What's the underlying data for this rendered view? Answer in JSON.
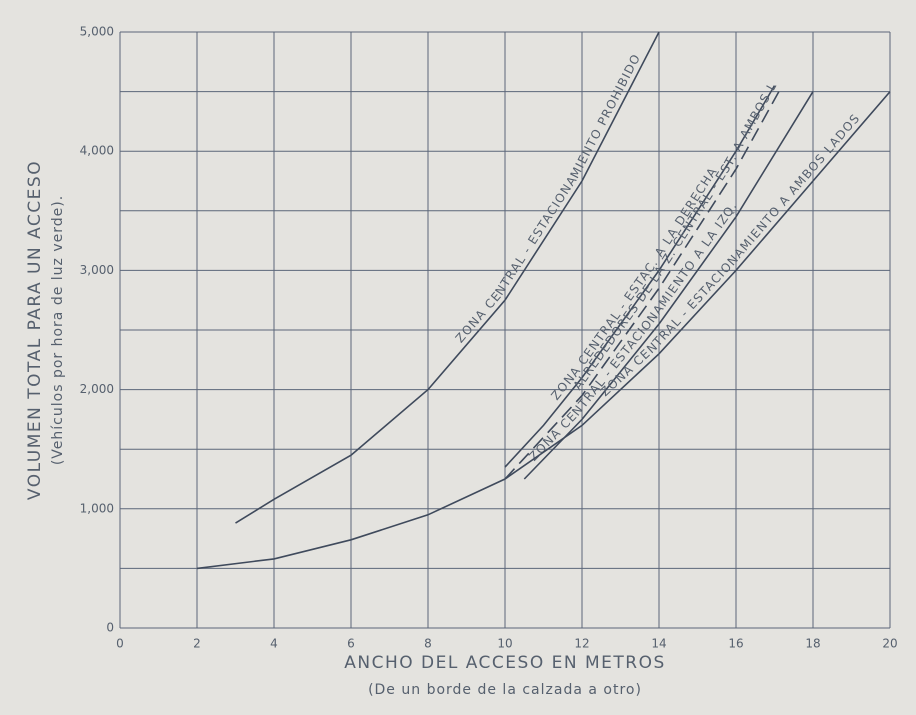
{
  "chart_data": {
    "type": "line",
    "xlabel": "ANCHO DEL ACCESO EN METROS",
    "xlabel_sub": "(De un borde de la calzada a otro)",
    "ylabel": "VOLUMEN TOTAL PARA UN ACCESO",
    "ylabel_sub": "(Vehículos por hora de luz verde).",
    "xlim": [
      0,
      20
    ],
    "ylim": [
      0,
      5000
    ],
    "xticks": [
      0,
      2,
      4,
      6,
      8,
      10,
      12,
      14,
      16,
      18,
      20
    ],
    "yticks": [
      0,
      {
        "value": 1000,
        "label": "1,000"
      },
      {
        "value": 2000,
        "label": "2,000"
      },
      {
        "value": 3000,
        "label": "3,000"
      },
      {
        "value": 4000,
        "label": "4,000"
      },
      {
        "value": 5000,
        "label": "5,000"
      }
    ],
    "ygrid": [
      0,
      500,
      1000,
      1500,
      2000,
      2500,
      3000,
      3500,
      4000,
      4500,
      5000
    ],
    "grid": true,
    "series": [
      {
        "name": "ZONA CENTRAL - ESTACIONAMIENTO PROHIBIDO",
        "color": "#3f4a5c",
        "dashed": false,
        "x": [
          3,
          4,
          6,
          8,
          10,
          12,
          14
        ],
        "values": [
          880,
          1080,
          1450,
          2000,
          2750,
          3750,
          5000
        ]
      },
      {
        "name": "ZONA CENTRAL - ESTAC. A LA DERECHA",
        "color": "#3f4a5c",
        "dashed": false,
        "x": [
          10,
          11,
          12,
          14,
          16,
          17
        ],
        "values": [
          1350,
          1700,
          2100,
          3000,
          4000,
          4550
        ]
      },
      {
        "name": "ALREDEDORES DE LA Z. CENTRAL - EST. A AMBOS LADOS",
        "color": "#3f4a5c",
        "dashed": true,
        "x": [
          10,
          11,
          12,
          14,
          16,
          17.2
        ],
        "values": [
          1250,
          1600,
          1950,
          2850,
          3850,
          4550
        ]
      },
      {
        "name": "ZONA CENTRAL - ESTACIONAMIENTO A LA IZQ.",
        "color": "#3f4a5c",
        "dashed": false,
        "x": [
          10.5,
          12,
          14,
          16,
          18
        ],
        "values": [
          1250,
          1750,
          2550,
          3450,
          4500
        ]
      },
      {
        "name": "ZONA CENTRAL - ESTACIONAMIENTO A AMBOS LADOS",
        "color": "#3f4a5c",
        "dashed": false,
        "x": [
          2,
          4,
          6,
          8,
          10,
          12,
          14,
          16,
          18,
          20
        ],
        "values": [
          500,
          580,
          740,
          950,
          1250,
          1700,
          2300,
          3000,
          3750,
          4500
        ]
      }
    ]
  }
}
